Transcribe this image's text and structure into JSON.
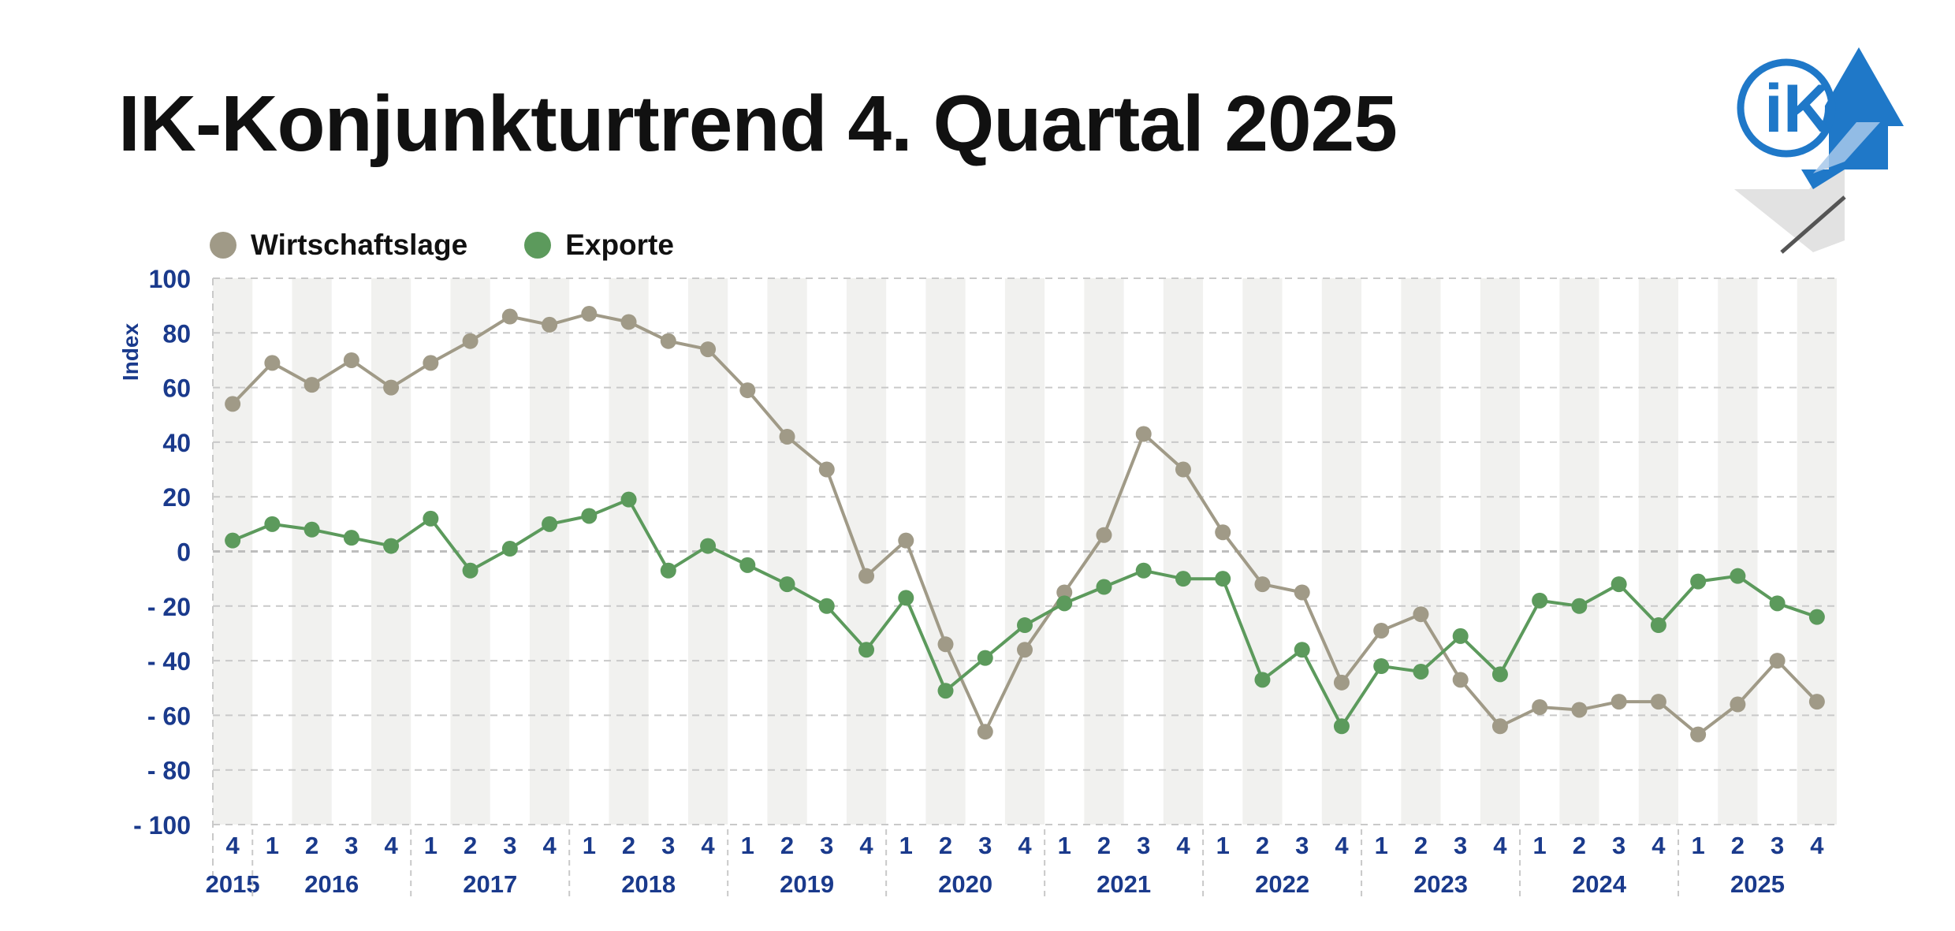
{
  "title": "IK-Konjunkturtrend 4. Quartal 2025",
  "logo": {
    "text": "iK",
    "color": "#1f78c8"
  },
  "chart_data": {
    "type": "line",
    "title": "IK-Konjunkturtrend 4. Quartal 2025",
    "ylabel": "Index",
    "ylim": [
      -100,
      100
    ],
    "yticks": [
      100,
      80,
      60,
      40,
      20,
      0,
      -20,
      -40,
      -60,
      -80,
      -100
    ],
    "ytick_labels": [
      "100",
      "80",
      "60",
      "40",
      "20",
      "0",
      "- 20",
      "- 40",
      "- 60",
      "- 80",
      "- 100"
    ],
    "grid": true,
    "legend_position": "top-left",
    "categories": [
      "4",
      "1",
      "2",
      "3",
      "4",
      "1",
      "2",
      "3",
      "4",
      "1",
      "2",
      "3",
      "4",
      "1",
      "2",
      "3",
      "4",
      "1",
      "2",
      "3",
      "4",
      "1",
      "2",
      "3",
      "4",
      "1",
      "2",
      "3",
      "4",
      "1",
      "2",
      "3",
      "4",
      "1",
      "2",
      "3",
      "4",
      "1",
      "2",
      "3",
      "4"
    ],
    "years": [
      {
        "label": "2015",
        "start": 0,
        "end": 0
      },
      {
        "label": "2016",
        "start": 1,
        "end": 4
      },
      {
        "label": "2017",
        "start": 5,
        "end": 8
      },
      {
        "label": "2018",
        "start": 9,
        "end": 12
      },
      {
        "label": "2019",
        "start": 13,
        "end": 16
      },
      {
        "label": "2020",
        "start": 17,
        "end": 20
      },
      {
        "label": "2021",
        "start": 21,
        "end": 24
      },
      {
        "label": "2022",
        "start": 25,
        "end": 28
      },
      {
        "label": "2023",
        "start": 29,
        "end": 32
      },
      {
        "label": "2024",
        "start": 33,
        "end": 36
      },
      {
        "label": "2025",
        "start": 37,
        "end": 40
      }
    ],
    "series": [
      {
        "name": "Wirtschaftslage",
        "color": "#a09a87",
        "values": [
          54,
          69,
          61,
          70,
          60,
          69,
          77,
          86,
          83,
          87,
          84,
          77,
          74,
          59,
          42,
          30,
          -9,
          4,
          -34,
          -66,
          -36,
          -15,
          6,
          43,
          30,
          7,
          -12,
          -15,
          -48,
          -29,
          -23,
          -47,
          -64,
          -57,
          -58,
          -55,
          -55,
          -67,
          -56,
          -40,
          -55
        ]
      },
      {
        "name": "Exporte",
        "color": "#5c9a5c",
        "values": [
          4,
          10,
          8,
          5,
          2,
          12,
          -7,
          1,
          10,
          13,
          19,
          -7,
          2,
          -5,
          -12,
          -20,
          -36,
          -17,
          -51,
          -39,
          -27,
          -19,
          -13,
          -7,
          -10,
          -10,
          -47,
          -36,
          -64,
          -42,
          -44,
          -31,
          -45,
          -18,
          -20,
          -12,
          -27,
          -11,
          -9,
          -19,
          -24
        ]
      }
    ]
  }
}
